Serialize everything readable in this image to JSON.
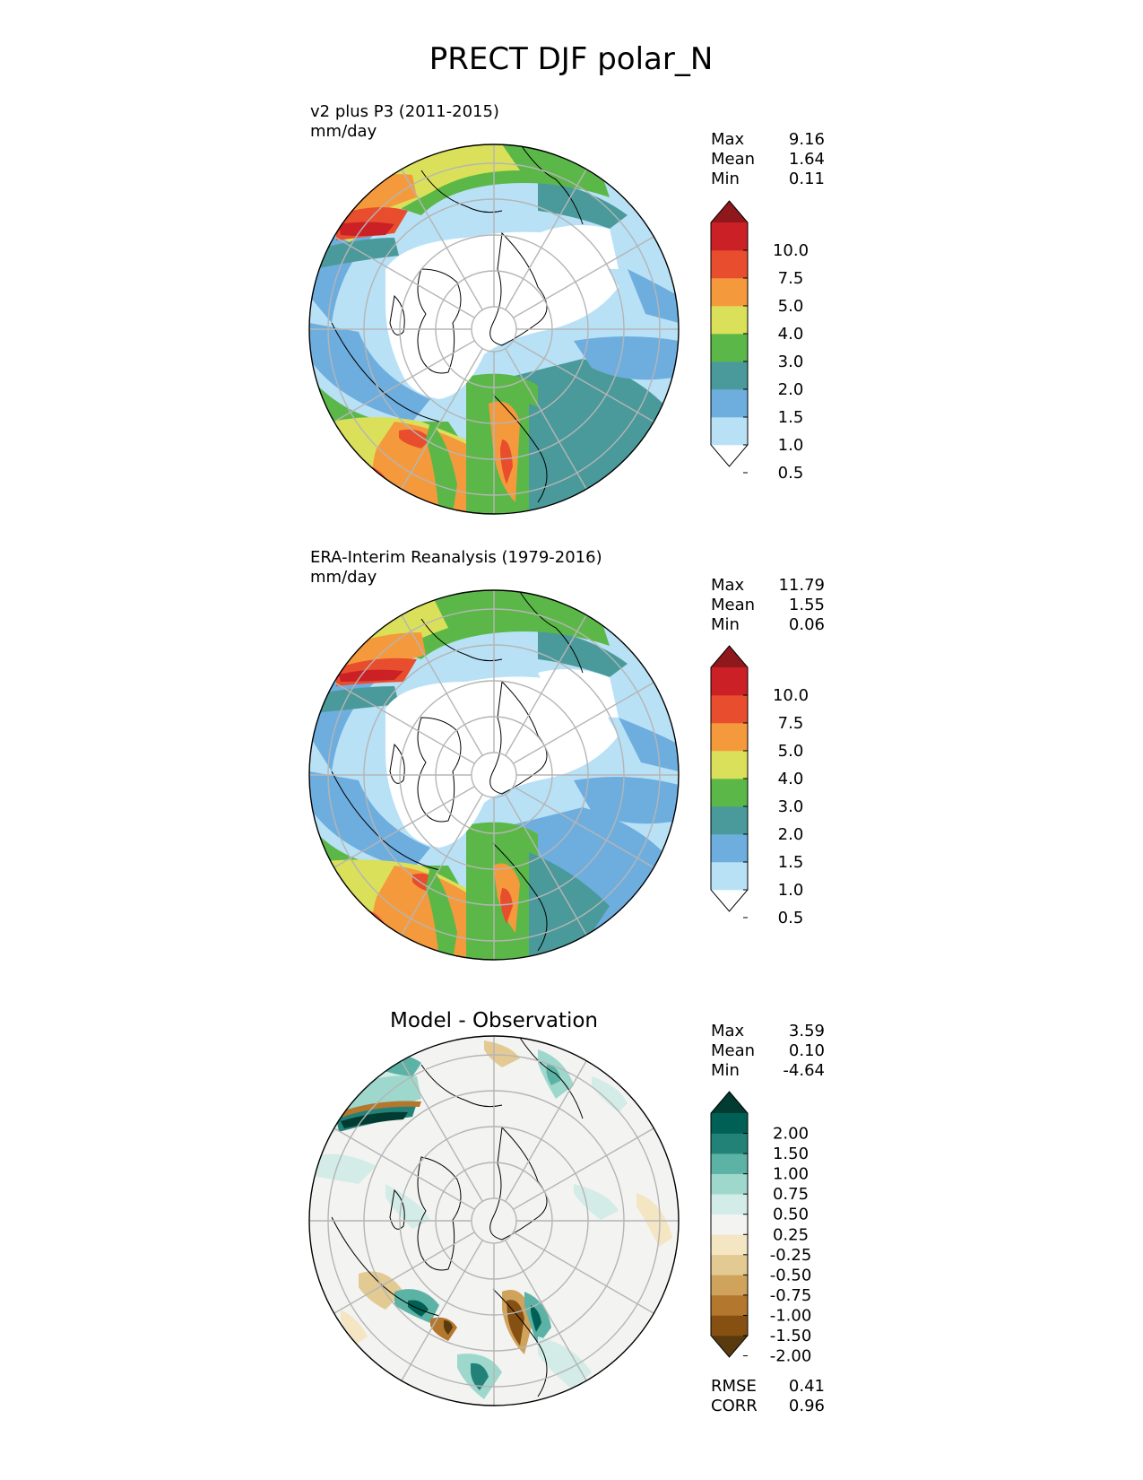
{
  "title": "PRECT DJF polar_N",
  "panels": [
    {
      "id": "model",
      "title": "",
      "line1": "v2 plus P3 (2011-2015)",
      "line2": "mm/day",
      "stats": [
        {
          "label": "Max",
          "value": "9.16"
        },
        {
          "label": "Mean",
          "value": "1.64"
        },
        {
          "label": "Min",
          "value": "0.11"
        }
      ],
      "colorbar": {
        "levels": [
          "10.0",
          "7.5",
          "5.0",
          "4.0",
          "3.0",
          "2.0",
          "1.5",
          "1.0",
          "0.5"
        ],
        "colors": [
          "#ffffff",
          "#b8e1f6",
          "#6eaedf",
          "#4a9a9b",
          "#5bb848",
          "#dbe05a",
          "#f59a3c",
          "#e84e2d",
          "#cc2027",
          "#8e181b"
        ]
      }
    },
    {
      "id": "obs",
      "title": "",
      "line1": "ERA-Interim Reanalysis (1979-2016)",
      "line2": "mm/day",
      "stats": [
        {
          "label": "Max",
          "value": "11.79"
        },
        {
          "label": "Mean",
          "value": "1.55"
        },
        {
          "label": "Min",
          "value": "0.06"
        }
      ],
      "colorbar": {
        "levels": [
          "10.0",
          "7.5",
          "5.0",
          "4.0",
          "3.0",
          "2.0",
          "1.5",
          "1.0",
          "0.5"
        ],
        "colors": [
          "#ffffff",
          "#b8e1f6",
          "#6eaedf",
          "#4a9a9b",
          "#5bb848",
          "#dbe05a",
          "#f59a3c",
          "#e84e2d",
          "#cc2027",
          "#8e181b"
        ]
      }
    },
    {
      "id": "diff",
      "title": "Model - Observation",
      "line1": "",
      "line2": "",
      "stats": [
        {
          "label": "Max",
          "value": "3.59"
        },
        {
          "label": "Mean",
          "value": "0.10"
        },
        {
          "label": "Min",
          "value": "-4.64"
        }
      ],
      "colorbar": {
        "levels": [
          "2.00",
          "1.50",
          "1.00",
          "0.75",
          "0.50",
          "0.25",
          "-0.25",
          "-0.50",
          "-0.75",
          "-1.00",
          "-1.50",
          "-2.00"
        ],
        "colors": [
          "#593a0e",
          "#865013",
          "#b3772d",
          "#cfa35b",
          "#e3ca92",
          "#f4e5c3",
          "#f3f3f1",
          "#d3ece8",
          "#9ed8cc",
          "#5cb3a5",
          "#238278",
          "#016055",
          "#013b31"
        ]
      },
      "extra": [
        {
          "label": "RMSE",
          "value": "0.41"
        },
        {
          "label": "CORR",
          "value": "0.96"
        }
      ]
    }
  ]
}
